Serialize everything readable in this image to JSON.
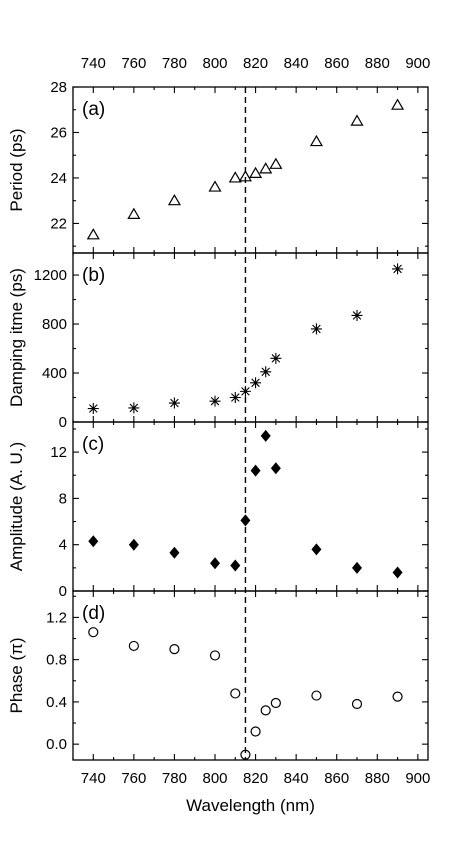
{
  "colors": {
    "marker": "#000000",
    "background": "#ffffff"
  },
  "chart_data": {
    "type": "scatter",
    "xlabel": "Wavelength (nm)",
    "xlim": [
      730,
      905
    ],
    "x_ticks": [
      740,
      760,
      780,
      800,
      820,
      840,
      860,
      880,
      900
    ],
    "x_tick_labels": [
      "740",
      "760",
      "780",
      "800",
      "820",
      "840",
      "860",
      "880",
      "900"
    ],
    "vline_x": 815,
    "panels": [
      {
        "tag": "(a)",
        "ylabel": "Period (ps)",
        "ylim": [
          20.7,
          28
        ],
        "y_ticks": [
          22,
          24,
          26,
          28
        ],
        "y_tick_labels": [
          "22",
          "24",
          "26",
          "28"
        ],
        "marker": "triangle",
        "x": [
          740,
          760,
          780,
          800,
          810,
          815,
          820,
          825,
          830,
          850,
          870,
          890
        ],
        "y": [
          21.5,
          22.4,
          23.0,
          23.6,
          24.0,
          24.05,
          24.2,
          24.4,
          24.6,
          25.6,
          26.5,
          27.2
        ]
      },
      {
        "tag": "(b)",
        "ylabel": "Damping itme (ps)",
        "ylim": [
          0,
          1380
        ],
        "y_ticks": [
          0,
          400,
          800,
          1200
        ],
        "y_tick_labels": [
          "0",
          "400",
          "800",
          "1200"
        ],
        "marker": "asterisk",
        "x": [
          740,
          760,
          780,
          800,
          810,
          815,
          820,
          825,
          830,
          850,
          870,
          890
        ],
        "y": [
          110,
          115,
          155,
          170,
          200,
          250,
          320,
          410,
          520,
          760,
          870,
          1250
        ]
      },
      {
        "tag": "(c)",
        "ylabel": "Amplitude (A. U.)",
        "ylim": [
          0,
          14.6
        ],
        "y_ticks": [
          0,
          4,
          8,
          12
        ],
        "y_tick_labels": [
          "0",
          "4",
          "8",
          "12"
        ],
        "marker": "diamond",
        "x": [
          740,
          760,
          780,
          800,
          810,
          815,
          820,
          825,
          830,
          850,
          870,
          890
        ],
        "y": [
          4.3,
          4.0,
          3.3,
          2.4,
          2.2,
          6.1,
          10.4,
          13.4,
          10.6,
          3.6,
          2.0,
          1.6
        ]
      },
      {
        "tag": "(d)",
        "ylabel": "Phase (π)",
        "ylim": [
          -0.15,
          1.45
        ],
        "y_ticks": [
          0.0,
          0.4,
          0.8,
          1.2
        ],
        "y_tick_labels": [
          "0.0",
          "0.4",
          "0.8",
          "1.2"
        ],
        "marker": "circle",
        "x": [
          740,
          760,
          780,
          800,
          810,
          815,
          820,
          825,
          830,
          850,
          870,
          890
        ],
        "y": [
          1.06,
          0.93,
          0.9,
          0.84,
          0.48,
          -0.1,
          0.12,
          0.32,
          0.39,
          0.46,
          0.38,
          0.45
        ]
      }
    ]
  }
}
